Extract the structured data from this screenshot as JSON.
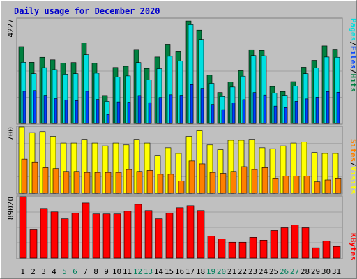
{
  "title": "Daily usage for December 2020",
  "colors": {
    "title": "#0000cc",
    "hits": "#008040",
    "files": "#0040ff",
    "pages": "#00e0e0",
    "visits": "#ff8000",
    "sites": "#ffff00",
    "kbytes": "#ff0000",
    "weekend_label": "#00805c",
    "panel_bg": "#c0c0c0",
    "grid": "#a0a0a0"
  },
  "legend": {
    "top": {
      "pages": "Pages",
      "sep1": "/",
      "files": "Files",
      "sep2": "/",
      "hits": "Hits"
    },
    "middle": {
      "sites": "Sites",
      "sep": "/",
      "visits": "Visits"
    },
    "bottom": {
      "kbytes": "KBytes"
    }
  },
  "chart_data": {
    "type": "bar",
    "title": "Daily usage for December 2020",
    "categories": [
      "1",
      "2",
      "3",
      "4",
      "5",
      "6",
      "7",
      "8",
      "9",
      "10",
      "11",
      "12",
      "13",
      "14",
      "15",
      "16",
      "17",
      "18",
      "19",
      "20",
      "21",
      "22",
      "23",
      "24",
      "25",
      "26",
      "27",
      "28",
      "29",
      "30",
      "31"
    ],
    "weekend_days": [
      "5",
      "6",
      "12",
      "13",
      "19",
      "20",
      "26",
      "27"
    ],
    "panels": [
      {
        "id": "top",
        "max_label": "4227",
        "ymax": 4227,
        "series": [
          {
            "name": "Hits",
            "values": [
              3100,
              2470,
              2670,
              2570,
              2440,
              2460,
              3260,
              2430,
              1130,
              2260,
              2310,
              2990,
              2220,
              2680,
              3200,
              2920,
              4140,
              3770,
              1950,
              1250,
              1680,
              2130,
              2980,
              2950,
              1490,
              1290,
              1690,
              2270,
              2550,
              3130,
              3000
            ]
          },
          {
            "name": "Files",
            "values": [
              2470,
              2010,
              2250,
              2170,
              1990,
              2010,
              2770,
              2030,
              890,
              1870,
              1920,
              2460,
              1760,
              2210,
              2710,
              2520,
              3990,
              3390,
              1620,
              1090,
              1470,
              1910,
              2740,
              2730,
              1220,
              1140,
              1510,
              2010,
              2240,
              2680,
              2670
            ]
          },
          {
            "name": "Pages",
            "values": [
              1300,
              1330,
              1140,
              1000,
              950,
              920,
              1300,
              970,
              360,
              870,
              860,
              1130,
              840,
              1050,
              1160,
              1140,
              1570,
              1420,
              770,
              560,
              830,
              960,
              1250,
              1150,
              700,
              640,
              890,
              990,
              1060,
              1290,
              1260
            ]
          }
        ]
      },
      {
        "id": "middle",
        "max_label": "700",
        "ymax": 700,
        "series": [
          {
            "name": "Visits",
            "values": [
              700,
              640,
              650,
              600,
              530,
              530,
              570,
              530,
              500,
              530,
              510,
              570,
              530,
              400,
              480,
              420,
              600,
              660,
              510,
              460,
              560,
              560,
              570,
              480,
              470,
              500,
              530,
              540,
              430,
              420,
              420
            ]
          },
          {
            "name": "Sites",
            "values": [
              360,
              330,
              270,
              260,
              230,
              230,
              220,
              220,
              220,
              220,
              250,
              230,
              240,
              200,
              200,
              130,
              340,
              310,
              220,
              210,
              230,
              280,
              250,
              270,
              160,
              180,
              180,
              180,
              120,
              140,
              160
            ]
          }
        ]
      },
      {
        "id": "bottom",
        "max_label": "89020",
        "ymax": 89020,
        "series": [
          {
            "name": "KBytes",
            "values": [
              89020,
              41000,
              72000,
              67000,
              57000,
              65000,
              80000,
              64000,
              64000,
              64000,
              68000,
              78000,
              69000,
              57000,
              65000,
              73000,
              76000,
              69000,
              32000,
              28000,
              23000,
              23000,
              30000,
              26000,
              40000,
              44000,
              48000,
              44000,
              15000,
              25000,
              17000
            ]
          }
        ]
      }
    ]
  }
}
